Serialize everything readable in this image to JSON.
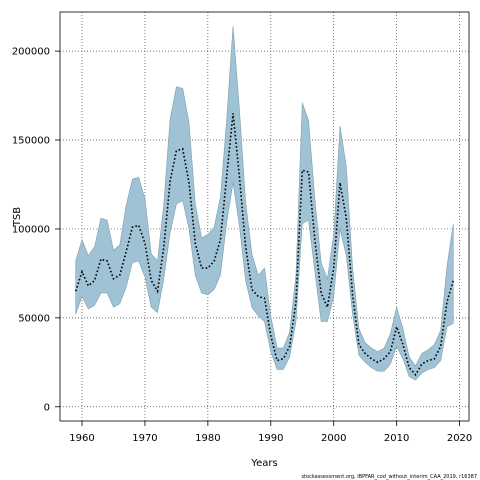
{
  "chart_data": {
    "type": "line",
    "title": "",
    "xlabel": "Years",
    "ylabel": "TSB",
    "xlim": [
      1956.5,
      2021.5
    ],
    "ylim": [
      -8000,
      222000
    ],
    "x_ticks": [
      1960,
      1970,
      1980,
      1990,
      2000,
      2010,
      2020
    ],
    "y_ticks": [
      0,
      50000,
      100000,
      150000,
      200000
    ],
    "grid": true,
    "grid_style": "dotted",
    "band_color": "#9fc2d4",
    "line_color": "#000000",
    "line_style": "dotted",
    "x": [
      1959,
      1960,
      1961,
      1962,
      1963,
      1964,
      1965,
      1966,
      1967,
      1968,
      1969,
      1970,
      1971,
      1972,
      1973,
      1974,
      1975,
      1976,
      1977,
      1978,
      1979,
      1980,
      1981,
      1982,
      1983,
      1984,
      1985,
      1986,
      1987,
      1988,
      1989,
      1990,
      1991,
      1992,
      1993,
      1994,
      1995,
      1996,
      1997,
      1998,
      1999,
      2000,
      2001,
      2002,
      2003,
      2004,
      2005,
      2006,
      2007,
      2008,
      2009,
      2010,
      2011,
      2012,
      2013,
      2014,
      2015,
      2016,
      2017,
      2018,
      2019
    ],
    "series": [
      {
        "role": "estimate",
        "values": [
          65000,
          76000,
          68000,
          71000,
          83000,
          82000,
          72000,
          74000,
          87000,
          101000,
          102000,
          92000,
          71000,
          65000,
          90000,
          127000,
          144000,
          145000,
          126000,
          92000,
          78000,
          78000,
          82000,
          94000,
          130000,
          165000,
          130000,
          90000,
          66000,
          62000,
          61000,
          40000,
          26000,
          27000,
          34000,
          59000,
          133000,
          132000,
          94000,
          64000,
          56000,
          78000,
          126000,
          106000,
          63000,
          35000,
          30000,
          27000,
          25000,
          27000,
          31000,
          45000,
          35000,
          22000,
          18000,
          24000,
          26000,
          27000,
          34000,
          59000,
          71000
        ]
      },
      {
        "role": "upper",
        "values": [
          82000,
          94000,
          85000,
          90000,
          106000,
          105000,
          88000,
          91000,
          113000,
          128000,
          129000,
          117000,
          86000,
          82000,
          114000,
          162000,
          180000,
          179000,
          160000,
          114000,
          95000,
          97000,
          101000,
          118000,
          162000,
          214000,
          168000,
          115000,
          86000,
          74000,
          78000,
          51000,
          33000,
          33000,
          42000,
          74000,
          171000,
          161000,
          117000,
          81000,
          72000,
          97000,
          158000,
          135000,
          78000,
          44000,
          36000,
          33000,
          31000,
          33000,
          41000,
          56000,
          44000,
          28000,
          23000,
          30000,
          32000,
          35000,
          43000,
          79000,
          103000
        ]
      },
      {
        "role": "lower",
        "values": [
          52000,
          62000,
          55000,
          57000,
          64000,
          64000,
          56000,
          58000,
          67000,
          81000,
          82000,
          73000,
          56000,
          53000,
          72000,
          98000,
          114000,
          116000,
          100000,
          74000,
          64000,
          63000,
          66000,
          74000,
          104000,
          126000,
          102000,
          71000,
          56000,
          51000,
          48000,
          31000,
          21000,
          21000,
          28000,
          48000,
          103000,
          105000,
          76000,
          48000,
          48000,
          62000,
          100000,
          85000,
          52000,
          29000,
          25000,
          22000,
          20000,
          20000,
          24000,
          34000,
          27000,
          17000,
          15000,
          19000,
          21000,
          22000,
          26000,
          45000,
          47000
        ]
      }
    ]
  },
  "caption": "stockassessment.org, IBPFAR_cod_without_interim_CAA_2019, r16387"
}
